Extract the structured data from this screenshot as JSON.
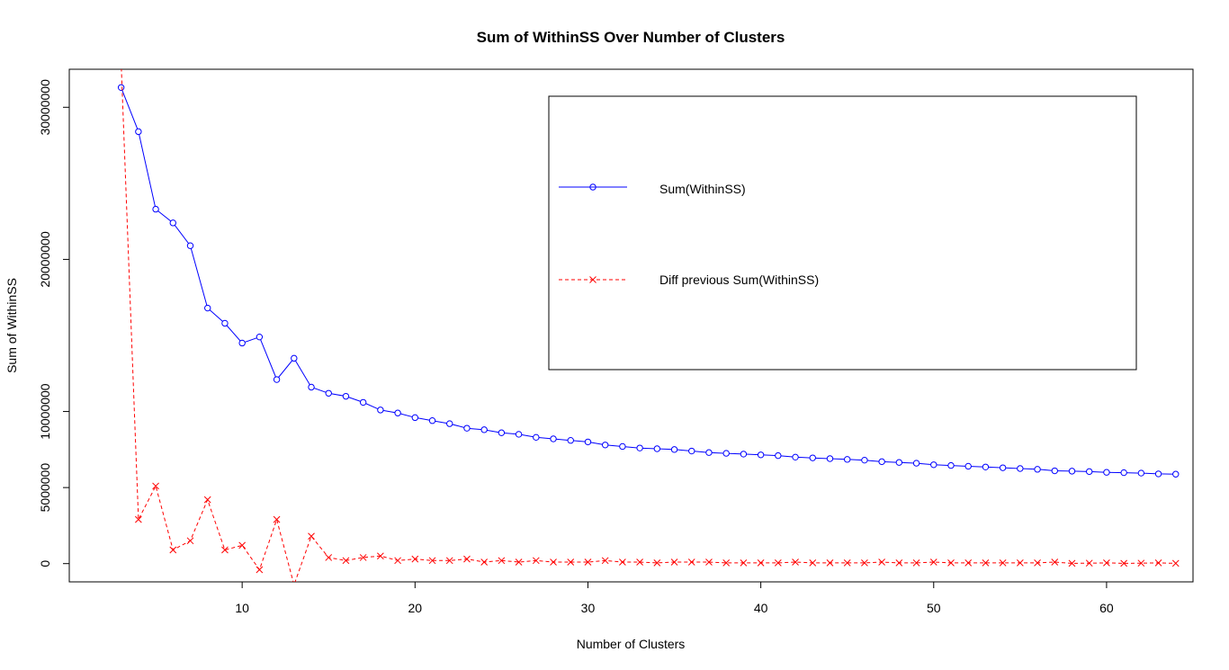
{
  "chart_data": {
    "type": "line",
    "title": "Sum of WithinSS Over Number of Clusters",
    "xlabel": "Number of Clusters",
    "ylabel": "Sum of WithinSS",
    "xlim": [
      0,
      65
    ],
    "ylim": [
      -1200000,
      32500000
    ],
    "x_ticks": [
      10,
      20,
      30,
      40,
      50,
      60
    ],
    "y_ticks": [
      0,
      5000000,
      10000000,
      20000000,
      30000000
    ],
    "y_tick_labels": [
      "0",
      "5000000",
      "10000000",
      "20000000",
      "30000000"
    ],
    "grid": false,
    "legend_position": "top-right",
    "x": [
      3,
      4,
      5,
      6,
      7,
      8,
      9,
      10,
      11,
      12,
      13,
      14,
      15,
      16,
      17,
      18,
      19,
      20,
      21,
      22,
      23,
      24,
      25,
      26,
      27,
      28,
      29,
      30,
      31,
      32,
      33,
      34,
      35,
      36,
      37,
      38,
      39,
      40,
      41,
      42,
      43,
      44,
      45,
      46,
      47,
      48,
      49,
      50,
      51,
      52,
      53,
      54,
      55,
      56,
      57,
      58,
      59,
      60,
      61,
      62,
      63,
      64
    ],
    "series": [
      {
        "name": "Sum(WithinSS)",
        "color": "#0000ff",
        "line_style": "solid",
        "marker": "circle",
        "values": [
          31300000,
          28400000,
          23300000,
          22400000,
          20900000,
          16800000,
          15800000,
          14500000,
          14900000,
          12100000,
          13500000,
          11600000,
          11200000,
          11000000,
          10600000,
          10100000,
          9900000,
          9600000,
          9400000,
          9200000,
          8900000,
          8800000,
          8600000,
          8500000,
          8300000,
          8200000,
          8100000,
          8000000,
          7800000,
          7700000,
          7600000,
          7550000,
          7500000,
          7400000,
          7300000,
          7250000,
          7200000,
          7150000,
          7100000,
          7000000,
          6950000,
          6900000,
          6850000,
          6800000,
          6700000,
          6650000,
          6600000,
          6500000,
          6450000,
          6400000,
          6350000,
          6300000,
          6250000,
          6200000,
          6100000,
          6080000,
          6050000,
          6000000,
          5980000,
          5950000,
          5900000,
          5880000
        ]
      },
      {
        "name": "Diff previous Sum(WithinSS)",
        "color": "#ff0000",
        "line_style": "dashed",
        "marker": "x",
        "values": [
          33000000,
          2900000,
          5100000,
          900000,
          1500000,
          4200000,
          900000,
          1200000,
          -400000,
          2900000,
          -1400000,
          1800000,
          400000,
          200000,
          400000,
          500000,
          200000,
          300000,
          200000,
          200000,
          300000,
          100000,
          200000,
          100000,
          200000,
          100000,
          100000,
          100000,
          200000,
          100000,
          100000,
          50000,
          100000,
          100000,
          100000,
          50000,
          50000,
          50000,
          50000,
          100000,
          50000,
          50000,
          50000,
          50000,
          100000,
          50000,
          50000,
          100000,
          50000,
          50000,
          50000,
          50000,
          50000,
          50000,
          100000,
          20000,
          30000,
          50000,
          20000,
          30000,
          50000,
          20000
        ]
      }
    ]
  }
}
